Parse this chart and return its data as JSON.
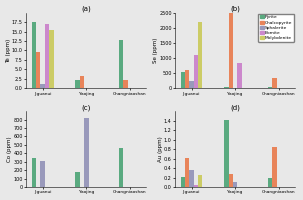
{
  "subplot_titles": [
    "(a)",
    "(b)",
    "(c)",
    "(d)"
  ],
  "categories": [
    "Jiguanui",
    "Yaojing",
    "Changniaoshan"
  ],
  "legend_labels": [
    "Pyrite",
    "Chalcopyrite",
    "Sphalerite",
    "Bornite",
    "Molybdenite"
  ],
  "colors": [
    "#5aaa80",
    "#e8845a",
    "#9999bb",
    "#cc88cc",
    "#cccc66"
  ],
  "ylabel_a": "Te (ppm)",
  "ylabel_b": "Se (ppm)",
  "ylabel_c": "Co (ppm)",
  "ylabel_d": "Au (ppm)",
  "data_a": {
    "Pyrite": [
      17.5,
      2.2,
      12.8
    ],
    "Chalcopyrite": [
      9.5,
      3.2,
      2.2
    ],
    "Sphalerite": [
      1.2,
      0.0,
      0.0
    ],
    "Bornite": [
      17.0,
      0.05,
      0.0
    ],
    "Molybdenite": [
      15.5,
      0.05,
      0.0
    ]
  },
  "data_b": {
    "Pyrite": [
      550,
      50,
      30
    ],
    "Chalcopyrite": [
      600,
      2500,
      350
    ],
    "Sphalerite": [
      250,
      0,
      20
    ],
    "Bornite": [
      1100,
      850,
      0
    ],
    "Molybdenite": [
      2200,
      0,
      0
    ]
  },
  "data_c": {
    "Pyrite": [
      340,
      180,
      460
    ],
    "Chalcopyrite": [
      5,
      0,
      0
    ],
    "Sphalerite": [
      310,
      820,
      0
    ],
    "Bornite": [
      0,
      0,
      0
    ],
    "Molybdenite": [
      0,
      0,
      0
    ]
  },
  "data_d": {
    "Pyrite": [
      0.22,
      1.42,
      0.2
    ],
    "Chalcopyrite": [
      0.62,
      0.28,
      0.85
    ],
    "Sphalerite": [
      0.35,
      0.1,
      0.0
    ],
    "Bornite": [
      0.05,
      0.0,
      0.0
    ],
    "Molybdenite": [
      0.25,
      0.0,
      0.0
    ]
  },
  "ylim_a": [
    0,
    20
  ],
  "ylim_b": [
    0,
    2500
  ],
  "ylim_c": [
    0,
    900
  ],
  "ylim_d": [
    0,
    1.6
  ],
  "yticks_a": [
    0,
    2.5,
    5.0,
    7.5,
    10.0,
    12.5,
    15.0,
    17.5
  ],
  "yticks_b": [
    0,
    500,
    1000,
    1500,
    2000,
    2500
  ],
  "yticks_c": [
    0,
    100,
    200,
    300,
    400,
    500,
    600,
    700,
    800
  ],
  "yticks_d": [
    0.0,
    0.2,
    0.4,
    0.6,
    0.8,
    1.0,
    1.2,
    1.4
  ],
  "fig_bg": "#e8e8e8"
}
